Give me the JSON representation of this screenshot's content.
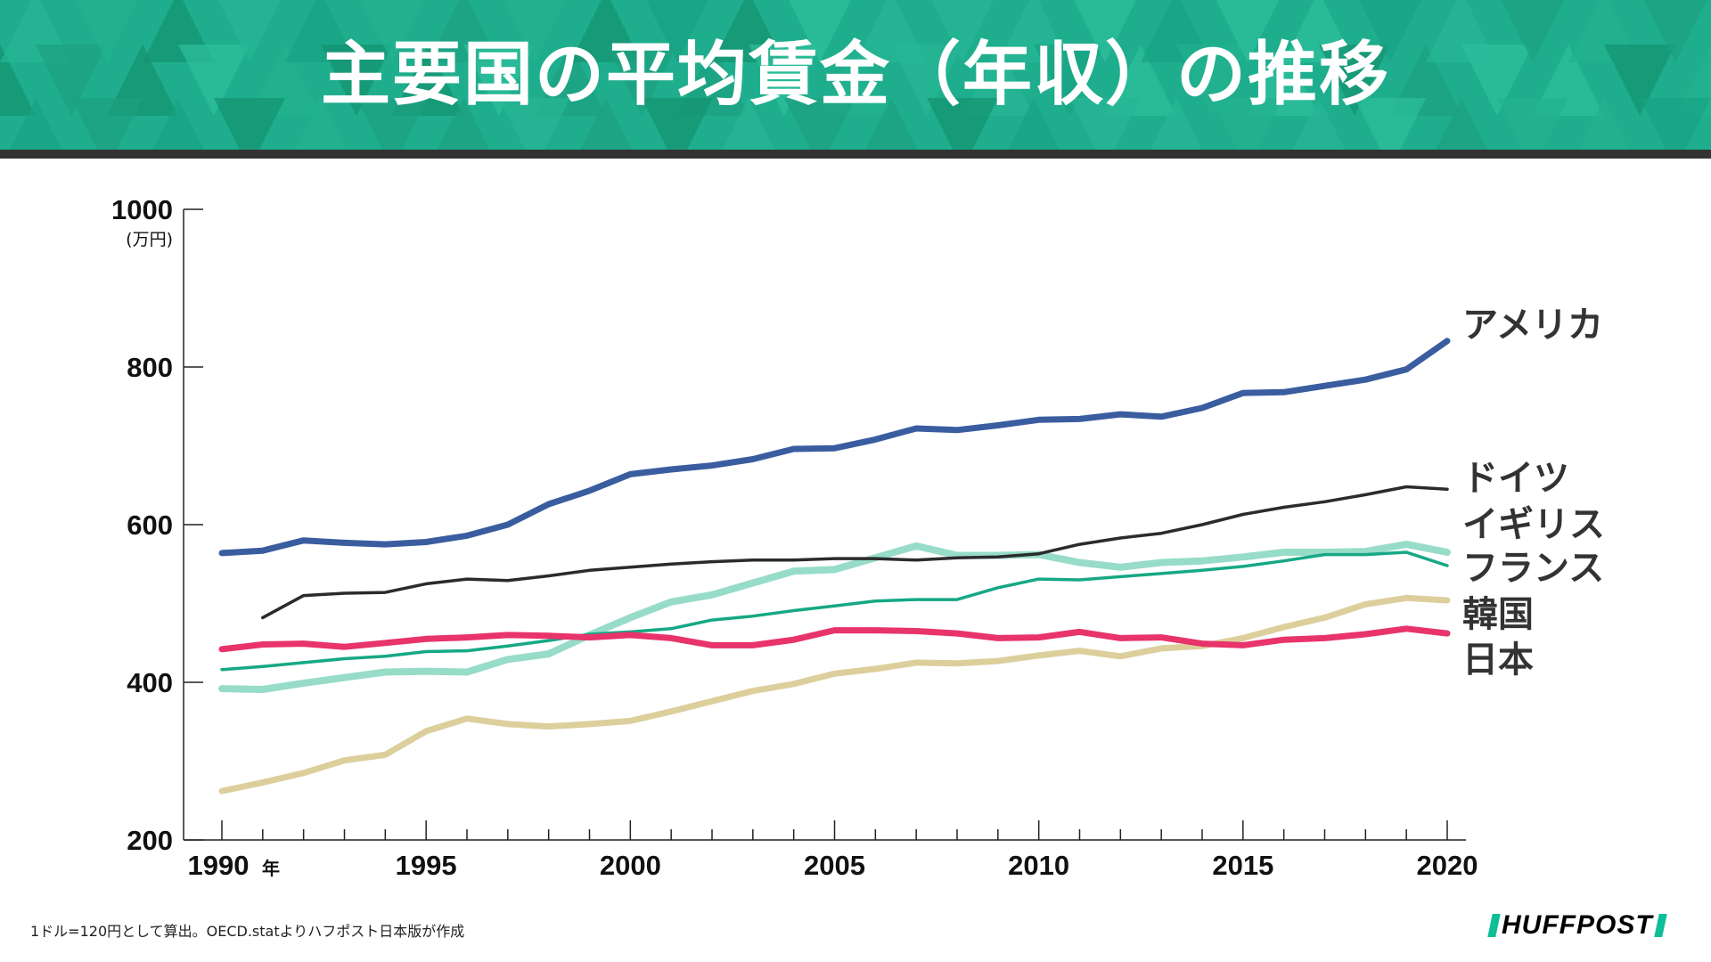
{
  "title": "主要国の平均賃金（年収）の推移",
  "note": "1ドル=120円として算出。OECD.statよりハフポスト日本版が作成",
  "logo": "HUFFPOST",
  "colors": {
    "header": "#1fae8d",
    "bar": "#333333",
    "logo_accent": "#0dbe98"
  },
  "chart_data": {
    "type": "line",
    "title": "主要国の平均賃金（年収）の推移",
    "yunit": "(万円)",
    "xunit": "年",
    "ylim": [
      200,
      1000
    ],
    "xlim": [
      1990,
      2020
    ],
    "yticks": [
      200,
      400,
      600,
      800,
      1000
    ],
    "xticks": [
      1990,
      1995,
      2000,
      2005,
      2010,
      2015,
      2020
    ],
    "grid": false,
    "legend": "direct labels at line ends (right)",
    "x": [
      1990,
      1991,
      1992,
      1993,
      1994,
      1995,
      1996,
      1997,
      1998,
      1999,
      2000,
      2001,
      2002,
      2003,
      2004,
      2005,
      2006,
      2007,
      2008,
      2009,
      2010,
      2011,
      2012,
      2013,
      2014,
      2015,
      2016,
      2017,
      2018,
      2019,
      2020
    ],
    "series": [
      {
        "name": "アメリカ",
        "color": "#3a5da0",
        "width": 7,
        "values": [
          564,
          567,
          580,
          577,
          575,
          578,
          586,
          600,
          626,
          643,
          664,
          670,
          675,
          683,
          696,
          697,
          708,
          722,
          720,
          726,
          733,
          734,
          740,
          737,
          748,
          767,
          768,
          776,
          784,
          797,
          833
        ]
      },
      {
        "name": "ドイツ",
        "color": "#2b2b2b",
        "width": 3.5,
        "values": [
          null,
          482,
          510,
          513,
          514,
          525,
          531,
          529,
          535,
          542,
          546,
          550,
          553,
          555,
          555,
          557,
          557,
          555,
          558,
          559,
          563,
          575,
          583,
          589,
          600,
          613,
          622,
          629,
          638,
          648,
          645
        ]
      },
      {
        "name": "イギリス",
        "color": "#97dcc8",
        "width": 8,
        "values": [
          392,
          391,
          399,
          406,
          413,
          414,
          413,
          429,
          436,
          460,
          482,
          502,
          511,
          526,
          541,
          543,
          558,
          573,
          561,
          561,
          562,
          552,
          546,
          552,
          554,
          559,
          565,
          565,
          566,
          575,
          565
        ]
      },
      {
        "name": "フランス",
        "color": "#16a885",
        "width": 3.5,
        "values": [
          416,
          420,
          425,
          430,
          433,
          439,
          440,
          446,
          453,
          461,
          464,
          468,
          479,
          484,
          491,
          497,
          503,
          505,
          505,
          520,
          531,
          530,
          534,
          538,
          542,
          547,
          554,
          562,
          562,
          565,
          548
        ]
      },
      {
        "name": "韓国",
        "color": "#dccf9c",
        "width": 7,
        "values": [
          262,
          273,
          285,
          301,
          308,
          338,
          354,
          347,
          344,
          347,
          351,
          363,
          376,
          389,
          398,
          411,
          417,
          425,
          424,
          427,
          434,
          440,
          433,
          443,
          446,
          456,
          470,
          482,
          499,
          507,
          504
        ]
      },
      {
        "name": "日本",
        "color": "#e8336b",
        "width": 7,
        "values": [
          442,
          448,
          449,
          445,
          450,
          455,
          457,
          460,
          459,
          457,
          460,
          456,
          447,
          447,
          454,
          466,
          466,
          465,
          462,
          456,
          457,
          464,
          456,
          457,
          449,
          447,
          454,
          456,
          461,
          468,
          462
        ]
      }
    ]
  }
}
